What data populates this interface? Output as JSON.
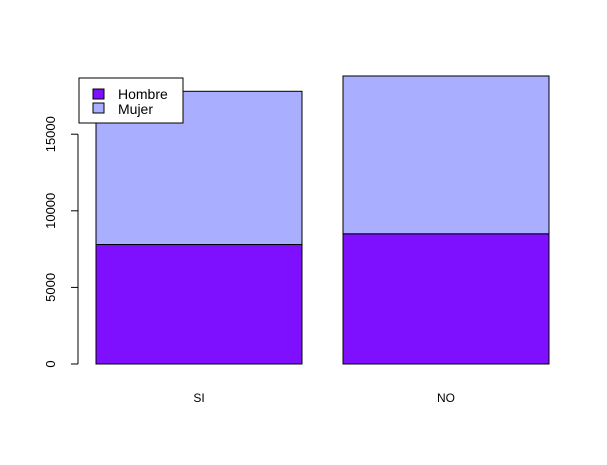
{
  "chart_data": {
    "type": "bar",
    "stacked": true,
    "categories": [
      "SI",
      "NO"
    ],
    "series": [
      {
        "name": "Hombre",
        "values": [
          7800,
          8500
        ],
        "color": "#7F0FFF"
      },
      {
        "name": "Mujer",
        "values": [
          10000,
          10300
        ],
        "color": "#AAAEFF"
      }
    ],
    "y_ticks": [
      "0",
      "5000",
      "10000",
      "15000"
    ],
    "ylim": [
      0,
      18800
    ],
    "title": "",
    "xlabel": "",
    "ylabel": "",
    "legend": {
      "position": "top-left",
      "entries": [
        "Hombre",
        "Mujer"
      ]
    },
    "grid": false
  }
}
